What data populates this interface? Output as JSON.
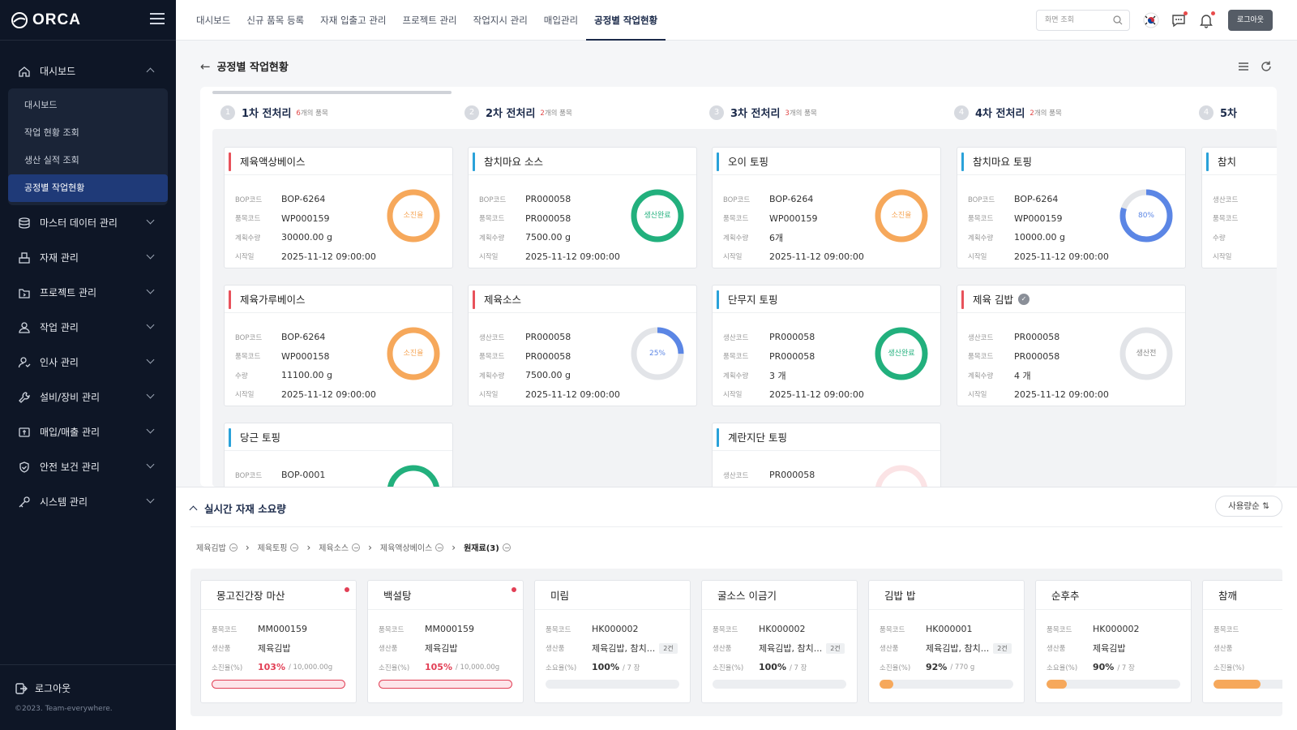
{
  "app": {
    "name": "ORCA",
    "copyright": "©2023. Team-everywhere.",
    "logout_side": "로그아웃"
  },
  "sidebar": {
    "groups": [
      {
        "label": "대시보드",
        "icon": "home-icon",
        "expanded": true,
        "children": [
          "대시보드",
          "작업 현황 조회",
          "생산 실적 조회",
          "공정별 작업현황"
        ]
      },
      {
        "label": "마스터 데이터 관리",
        "icon": "database-icon"
      },
      {
        "label": "자재 관리",
        "icon": "materials-icon"
      },
      {
        "label": "프로젝트 관리",
        "icon": "folder-icon"
      },
      {
        "label": "작업 관리",
        "icon": "worker-icon"
      },
      {
        "label": "인사 관리",
        "icon": "person-icon"
      },
      {
        "label": "설비/장비 관리",
        "icon": "wrench-icon"
      },
      {
        "label": "매입/매출 관리",
        "icon": "money-icon"
      },
      {
        "label": "안전 보건 관리",
        "icon": "shield-icon"
      },
      {
        "label": "시스템 관리",
        "icon": "key-icon"
      }
    ]
  },
  "topnav": {
    "items": [
      "대시보드",
      "신규 품목 등록",
      "자재 입출고 관리",
      "프로젝트 관리",
      "작업지시 관리",
      "매입관리",
      "공정별 작업현황"
    ],
    "active_index": 6,
    "search_placeholder": "화면 조회",
    "logout": "로그아웃"
  },
  "page": {
    "title": "공정별 작업현황"
  },
  "stages": [
    {
      "num": "1",
      "name": "1차 전처리",
      "count": "6",
      "count_suffix": "개의 품목"
    },
    {
      "num": "2",
      "name": "2차 전처리",
      "count": "2",
      "count_suffix": "개의 품목"
    },
    {
      "num": "3",
      "name": "3차 전처리",
      "count": "3",
      "count_suffix": "개의 품목"
    },
    {
      "num": "4",
      "name": "4차 전처리",
      "count": "2",
      "count_suffix": "개의 품목"
    },
    {
      "num": "4",
      "name": "5차",
      "count": "",
      "count_suffix": ""
    }
  ],
  "colors": {
    "red": "#e8525b",
    "blue": "#2aa2d9",
    "orange": "#f6a85b",
    "green": "#22b07d",
    "lightblue": "#5b86e5",
    "grey": "#d6d8dc"
  },
  "cards": [
    {
      "title": "제육액상베이스",
      "bar": "red",
      "rows": [
        [
          "BOP코드",
          "BOP-6264"
        ],
        [
          "품목코드",
          "WP000159"
        ],
        [
          "계획수량",
          "30000.00 g"
        ],
        [
          "시작일",
          "2025-11-12 09:00:00"
        ]
      ],
      "status": "소진율",
      "ring": "orange",
      "pct": 1.0
    },
    {
      "title": "제육가루베이스",
      "bar": "red",
      "rows": [
        [
          "BOP코드",
          "BOP-6264"
        ],
        [
          "품목코드",
          "WP000158"
        ],
        [
          "수량",
          "11100.00 g"
        ],
        [
          "시작일",
          "2025-11-12 09:00:00"
        ]
      ],
      "status": "소진율",
      "ring": "orange",
      "pct": 1.0
    },
    {
      "title": "당근 토핑",
      "bar": "blue",
      "rows": [
        [
          "BOP코드",
          "BOP-0001"
        ]
      ],
      "status": "",
      "ring": "green",
      "pct": 1.0
    },
    {
      "title": "참치마요 소스",
      "bar": "blue",
      "rows": [
        [
          "BOP코드",
          "PR000058"
        ],
        [
          "품목코드",
          "PR000058"
        ],
        [
          "계획수량",
          "7500.00 g"
        ],
        [
          "시작일",
          "2025-11-12 09:00:00"
        ]
      ],
      "status": "생산완료",
      "ring": "green",
      "pct": 1.0
    },
    {
      "title": "제육소스",
      "bar": "red",
      "rows": [
        [
          "생산코드",
          "PR000058"
        ],
        [
          "품목코드",
          "PR000058"
        ],
        [
          "계획수량",
          "7500.00 g"
        ],
        [
          "시작일",
          "2025-11-12 09:00:00"
        ]
      ],
      "status": "25%",
      "ring": "lightblue",
      "pct": 0.25
    },
    {
      "title": "오이 토핑",
      "bar": "blue",
      "rows": [
        [
          "BOP코드",
          "BOP-6264"
        ],
        [
          "품목코드",
          "WP000159"
        ],
        [
          "계획수량",
          "6개"
        ],
        [
          "시작일",
          "2025-11-12 09:00:00"
        ]
      ],
      "status": "소진율",
      "ring": "orange",
      "pct": 1.0
    },
    {
      "title": "단무지 토핑",
      "bar": "blue",
      "rows": [
        [
          "생산코드",
          "PR000058"
        ],
        [
          "품목코드",
          "PR000058"
        ],
        [
          "계획수량",
          "3 개"
        ],
        [
          "시작일",
          "2025-11-12 09:00:00"
        ]
      ],
      "status": "생산완료",
      "ring": "green",
      "pct": 1.0
    },
    {
      "title": "계란지단 토핑",
      "bar": "blue",
      "rows": [
        [
          "생산코드",
          "PR000058"
        ]
      ],
      "status": "",
      "ring": "red",
      "pct": 0.0
    },
    {
      "title": "참치마요 토핑",
      "bar": "blue",
      "rows": [
        [
          "BOP코드",
          "BOP-6264"
        ],
        [
          "품목코드",
          "WP000159"
        ],
        [
          "계획수량",
          "10000.00 g"
        ],
        [
          "시작일",
          "2025-11-12 09:00:00"
        ]
      ],
      "status": "80%",
      "ring": "lightblue",
      "pct": 0.8
    },
    {
      "title": "제육 김밥",
      "bar": "red",
      "verified": true,
      "rows": [
        [
          "생산코드",
          "PR000058"
        ],
        [
          "품목코드",
          "PR000058"
        ],
        [
          "계획수량",
          "4 개"
        ],
        [
          "시작일",
          "2025-11-12 09:00:00"
        ]
      ],
      "status": "생산전",
      "ring": "grey",
      "pct": 0.0
    },
    {
      "title": "참치",
      "bar": "blue",
      "rows": [
        [
          "생산코드",
          ""
        ],
        [
          "품목코드",
          ""
        ],
        [
          "수량",
          ""
        ],
        [
          "시작일",
          ""
        ]
      ],
      "status": "",
      "ring": "none",
      "pct": 0.0
    }
  ],
  "bottom": {
    "title": "실시간 자재 소요량",
    "sort": "사용량순",
    "breadcrumb": [
      "제육김밥",
      "제육토핑",
      "제육소스",
      "제육액상베이스",
      "원재료(3)"
    ],
    "materials": [
      {
        "name": "몽고진간장 마산",
        "alert": true,
        "code_label": "품목코드",
        "code": "MM000159",
        "prod_label": "생산품",
        "prod": "제육김밥",
        "tag": "",
        "pct_label": "소진율(%)",
        "pct": "103%",
        "total": "/ 10,000.00g",
        "fill": 1.0,
        "over": true
      },
      {
        "name": "백설탕",
        "alert": true,
        "code_label": "품목코드",
        "code": "MM000159",
        "prod_label": "생산품",
        "prod": "제육김밥",
        "tag": "",
        "pct_label": "소진율(%)",
        "pct": "105%",
        "total": "/ 10,000.00g",
        "fill": 1.0,
        "over": true
      },
      {
        "name": "미림",
        "alert": false,
        "code_label": "품목코드",
        "code": "HK000002",
        "prod_label": "생산품",
        "prod": "제육김밥, 참치...",
        "tag": "2건",
        "pct_label": "소요율(%)",
        "pct": "100%",
        "total": "/ 7 장",
        "fill": 0.0,
        "over": false
      },
      {
        "name": "굴소스 이금기",
        "alert": false,
        "code_label": "품목코드",
        "code": "HK000002",
        "prod_label": "생산품",
        "prod": "제육김밥, 참치...",
        "tag": "2건",
        "pct_label": "소진율(%)",
        "pct": "100%",
        "total": "/ 7 장",
        "fill": 0.0,
        "over": false
      },
      {
        "name": "김밥 밥",
        "alert": false,
        "code_label": "품목코드",
        "code": "HK000001",
        "prod_label": "생산품",
        "prod": "제육김밥, 참치...",
        "tag": "2건",
        "pct_label": "소진율(%)",
        "pct": "92%",
        "total": "/ 770 g",
        "fill": 0.1,
        "over": false
      },
      {
        "name": "순후추",
        "alert": false,
        "code_label": "품목코드",
        "code": "HK000002",
        "prod_label": "생산품",
        "prod": "제육김밥",
        "tag": "",
        "pct_label": "소요율(%)",
        "pct": "90%",
        "total": "/ 7 장",
        "fill": 0.15,
        "over": false
      },
      {
        "name": "참깨",
        "alert": false,
        "code_label": "품목코드",
        "code": "",
        "prod_label": "생산품",
        "prod": "",
        "tag": "",
        "pct_label": "소진율(%)",
        "pct": "",
        "total": "",
        "fill": 0.35,
        "over": false
      }
    ]
  }
}
